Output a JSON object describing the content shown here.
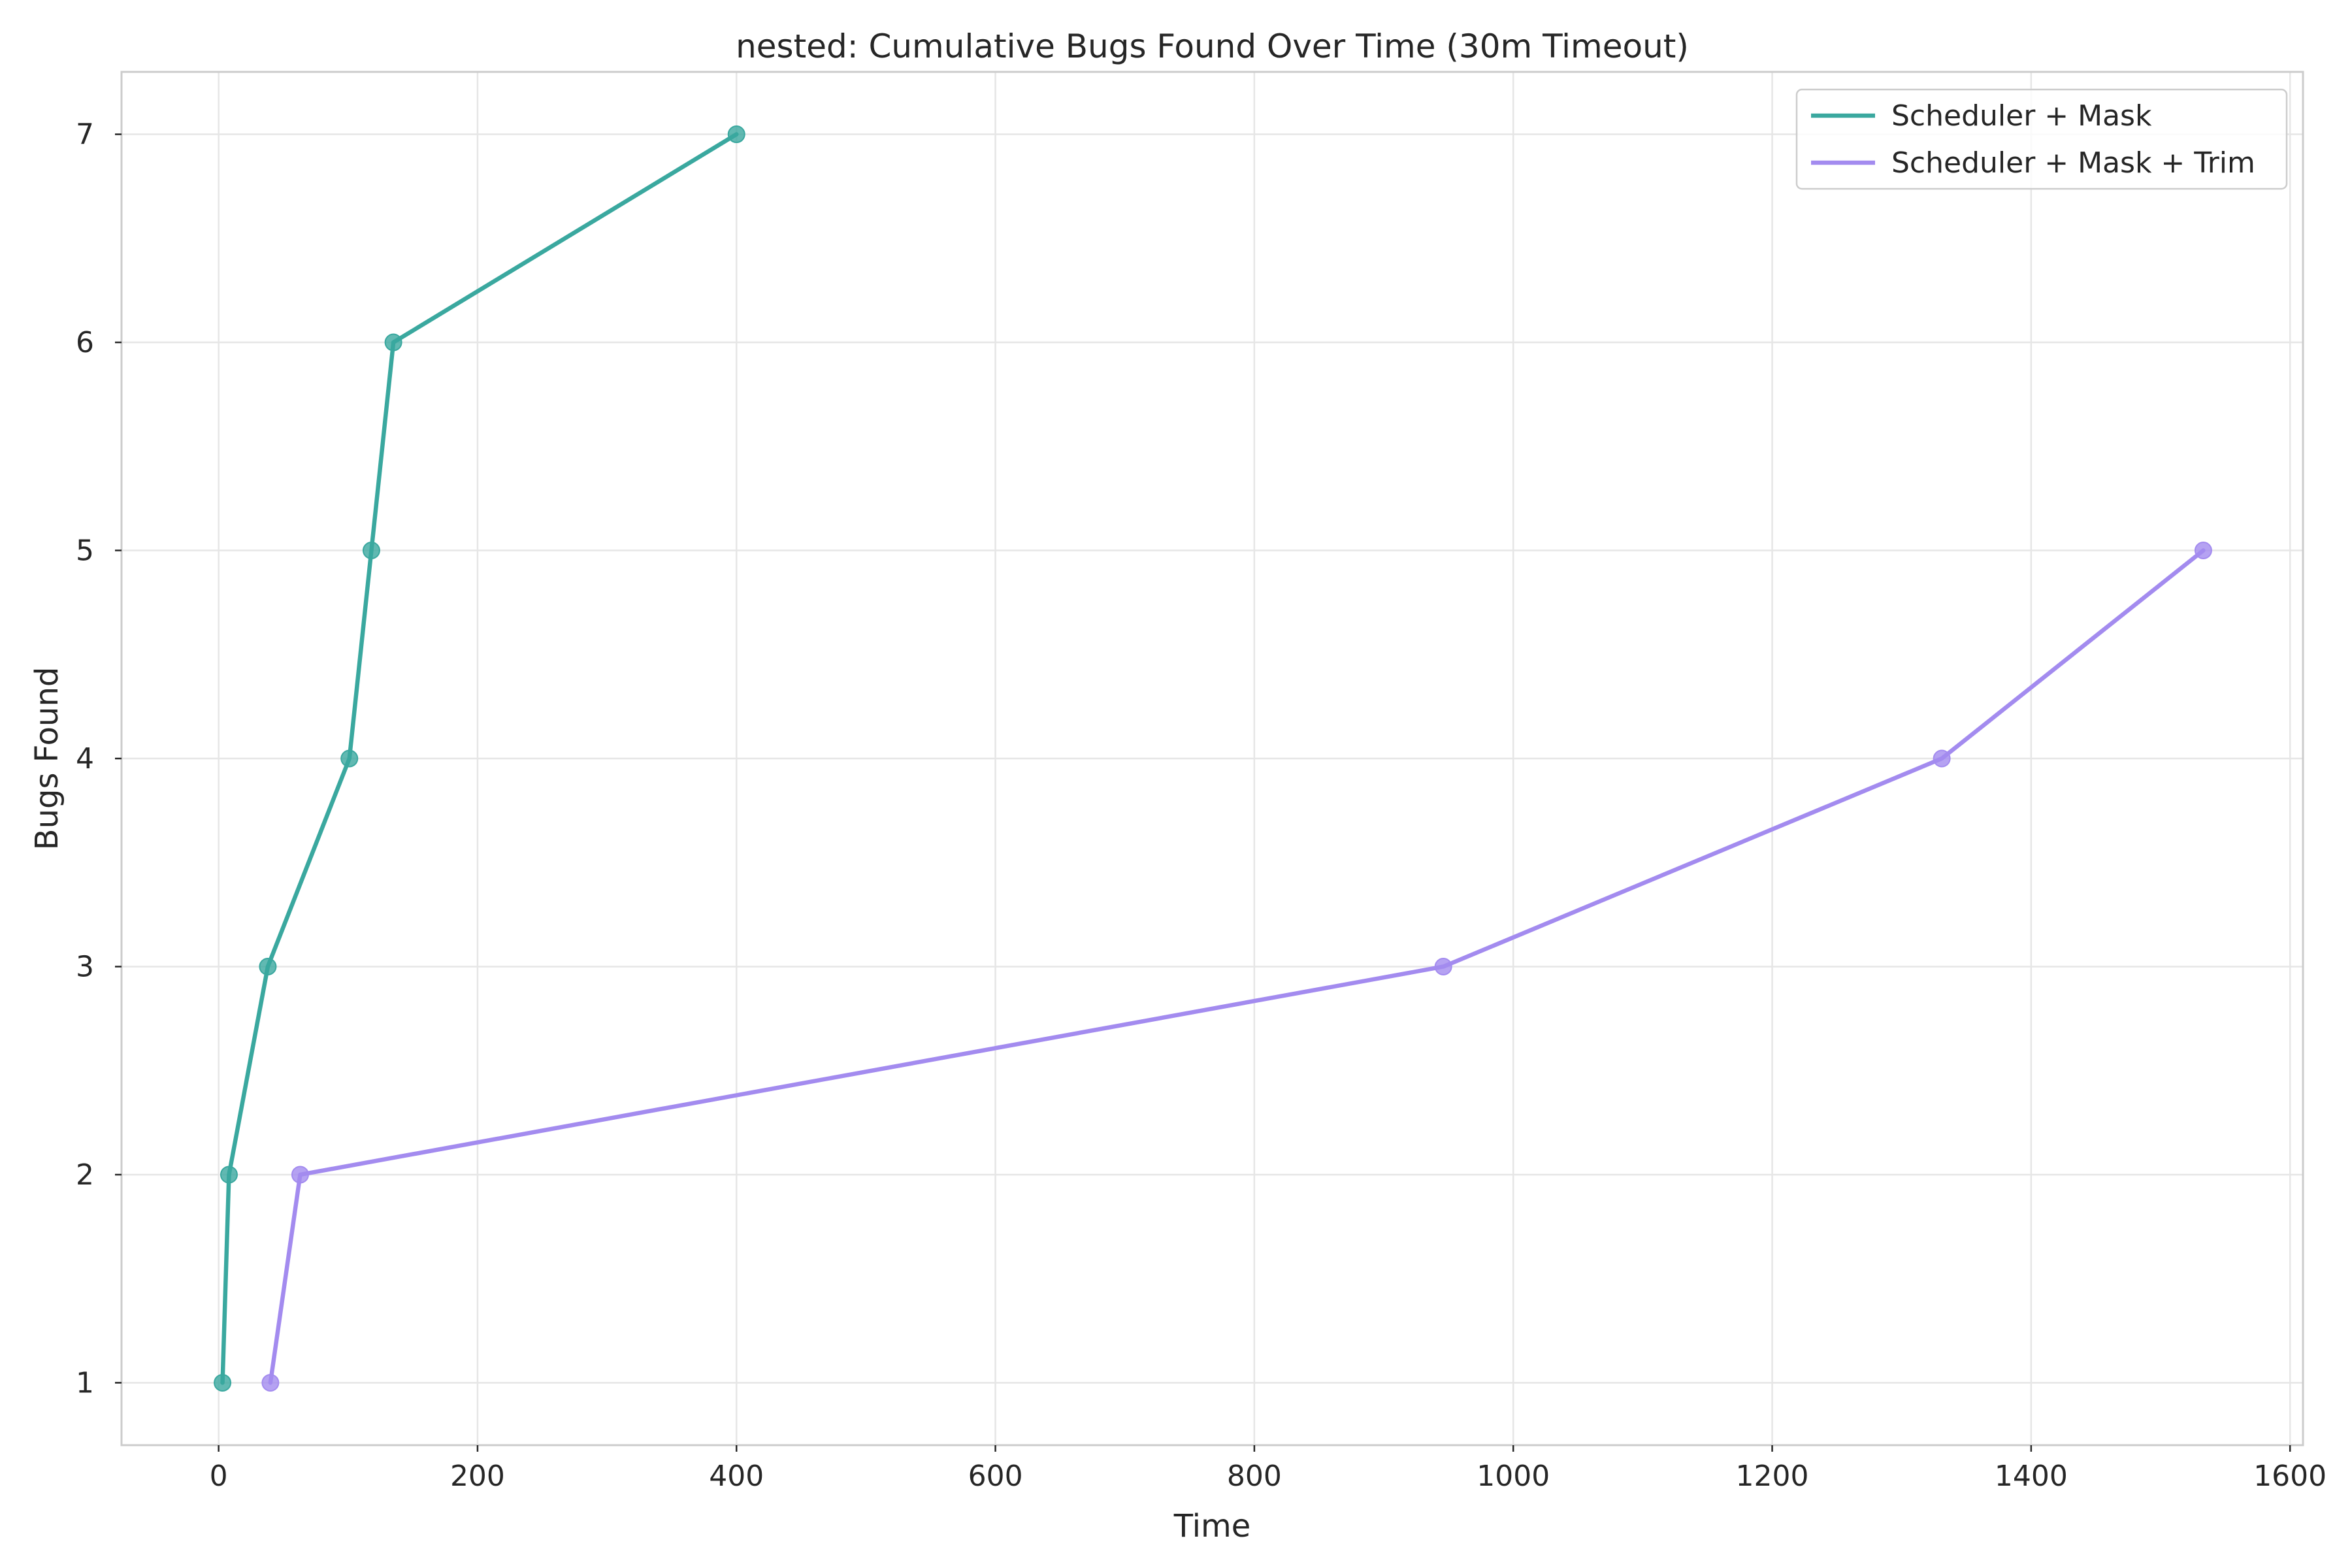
{
  "chart_data": {
    "type": "line",
    "title": "nested: Cumulative Bugs Found Over Time (30m Timeout)",
    "xlabel": "Time",
    "ylabel": "Bugs Found",
    "xlim": [
      -75,
      1610
    ],
    "ylim": [
      0.7,
      7.3
    ],
    "xticks": [
      0,
      200,
      400,
      600,
      800,
      1000,
      1200,
      1400,
      1600
    ],
    "yticks": [
      1,
      2,
      3,
      4,
      5,
      6,
      7
    ],
    "grid": true,
    "legend_position": "top-right",
    "series": [
      {
        "name": "Scheduler + Mask",
        "color": "#3aa89f",
        "x": [
          3,
          8,
          38,
          101,
          118,
          135,
          400
        ],
        "y": [
          1,
          2,
          3,
          4,
          5,
          6,
          7
        ]
      },
      {
        "name": "Scheduler + Mask + Trim",
        "color": "#a38bef",
        "x": [
          40,
          63,
          946,
          1331,
          1533
        ],
        "y": [
          1,
          2,
          3,
          4,
          5
        ]
      }
    ]
  }
}
